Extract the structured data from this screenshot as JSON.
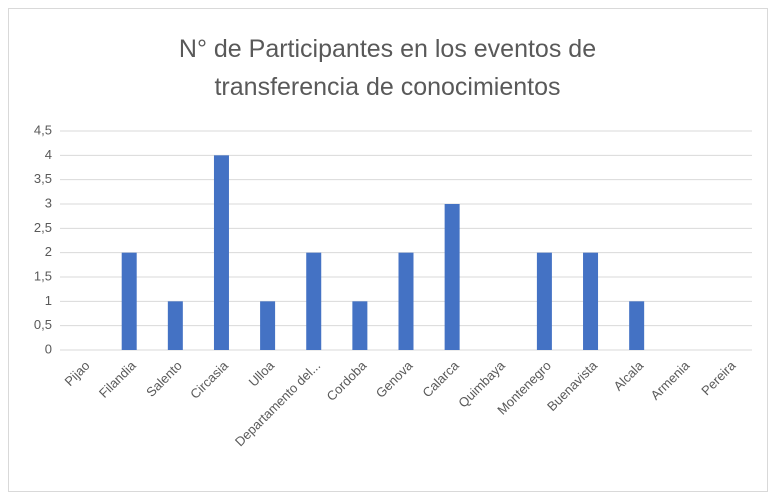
{
  "chart_data": {
    "type": "bar",
    "title": "N° de Participantes en los eventos de transferencia de conocimientos",
    "categories": [
      "Pijao",
      "Filandia",
      "Salento",
      "Circasia",
      "Ulloa",
      "Departamento del...",
      "Cordoba",
      "Genova",
      "Calarca",
      "Quimbaya",
      "Montenegro",
      "Buenavista",
      "Alcala",
      "Armenia",
      "Pereira"
    ],
    "values": [
      0,
      2,
      1,
      4,
      1,
      2,
      1,
      2,
      3,
      0,
      2,
      2,
      1,
      0,
      0
    ],
    "color": "#4472c4",
    "ylim": [
      0,
      4.5
    ],
    "yticks": [
      0,
      {
        "value": 0.5,
        "label": "0,5"
      },
      1,
      {
        "value": 1.5,
        "label": "1,5"
      },
      2,
      {
        "value": 2.5,
        "label": "2,5"
      },
      3,
      {
        "value": 3.5,
        "label": "3,5"
      },
      4,
      {
        "value": 4.5,
        "label": "4,5"
      }
    ],
    "grid": true
  }
}
